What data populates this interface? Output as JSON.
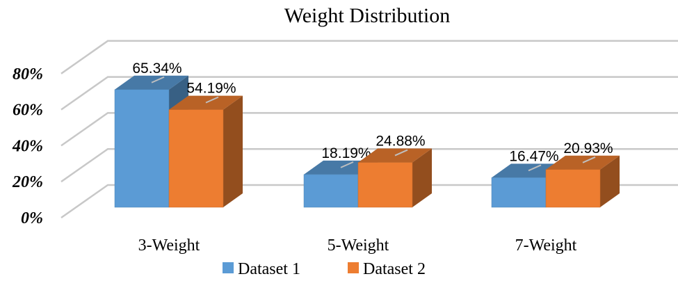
{
  "chart_data": {
    "type": "bar",
    "title": "Weight Distribution",
    "categories": [
      "3-Weight",
      "5-Weight",
      "7-Weight"
    ],
    "series": [
      {
        "name": "Dataset 1",
        "color": "#5b9bd5",
        "values": [
          65.34,
          18.19,
          16.47
        ],
        "labels": [
          "65.34%",
          "18.19%",
          "16.47%"
        ]
      },
      {
        "name": "Dataset 2",
        "color": "#ed7d31",
        "values": [
          54.19,
          24.88,
          20.93
        ],
        "labels": [
          "54.19%",
          "24.88%",
          "20.93%"
        ]
      }
    ],
    "yticks": [
      "0%",
      "20%",
      "40%",
      "60%",
      "80%"
    ],
    "ylim": [
      0,
      80
    ],
    "xlabel": "",
    "ylabel": "",
    "grid": true,
    "legend_position": "bottom",
    "style": "3d-clustered-column"
  }
}
